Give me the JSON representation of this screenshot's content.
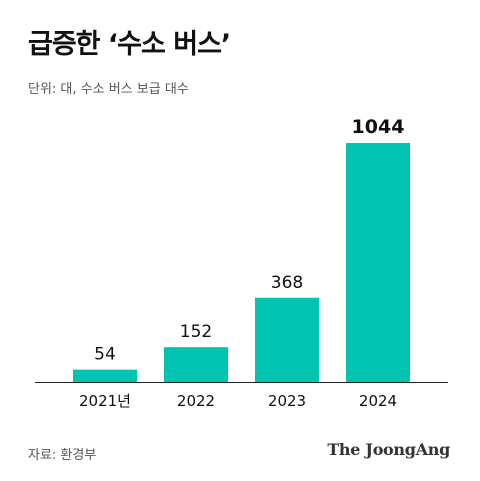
{
  "header": {
    "title": "급증한 ‘수소 버스’",
    "unit": "단위: 대, 수소 버스 보급 대수"
  },
  "footer": {
    "source": "자료: 환경부",
    "logo": "The JoongAng"
  },
  "colors": {
    "bar": "#00c4b0",
    "axis": "#222222"
  },
  "chart_data": {
    "type": "bar",
    "categories": [
      "2021년",
      "2022",
      "2023",
      "2024"
    ],
    "values": [
      54,
      152,
      368,
      1044
    ],
    "title": "급증한 ‘수소 버스’",
    "xlabel": "",
    "ylabel": "",
    "ylim": [
      0,
      1044
    ],
    "grid": false,
    "legend": "none"
  }
}
